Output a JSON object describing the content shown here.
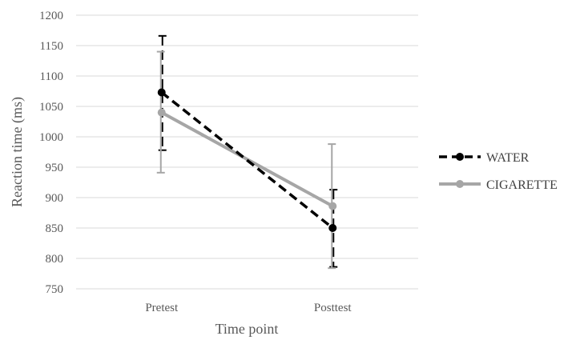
{
  "chart_data": {
    "type": "line",
    "title": "",
    "xlabel": "Time point",
    "ylabel": "Reaction time (ms)",
    "categories": [
      "Pretest",
      "Posttest"
    ],
    "ylim": [
      750,
      1200
    ],
    "yticks": [
      750,
      800,
      850,
      900,
      950,
      1000,
      1050,
      1100,
      1150,
      1200
    ],
    "grid": true,
    "legend_position": "right",
    "series": [
      {
        "name": "WATER",
        "values": [
          1073,
          850
        ],
        "error_upper": [
          1166,
          913
        ],
        "error_lower": [
          978,
          786
        ],
        "color": "#000000",
        "line_style": "dashed"
      },
      {
        "name": "CIGARETTE",
        "values": [
          1040,
          886
        ],
        "error_upper": [
          1140,
          988
        ],
        "error_lower": [
          941,
          784
        ],
        "color": "#a6a6a6",
        "line_style": "solid"
      }
    ]
  }
}
